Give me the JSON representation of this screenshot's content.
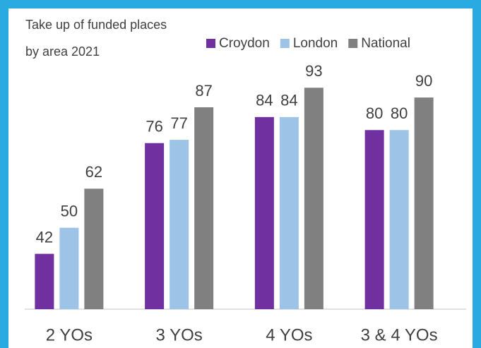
{
  "chart_data": {
    "type": "bar",
    "title": [
      "Take up of funded places",
      "by area 2021"
    ],
    "categories": [
      "2 YOs",
      "3 YOs",
      "4 YOs",
      "3 & 4 YOs"
    ],
    "series": [
      {
        "name": "Croydon",
        "color": "#7030a0",
        "values": [
          42,
          76,
          84,
          80
        ]
      },
      {
        "name": "London",
        "color": "#9dc3e6",
        "values": [
          50,
          77,
          84,
          80
        ]
      },
      {
        "name": "National",
        "color": "#808080",
        "values": [
          62,
          87,
          93,
          90
        ]
      }
    ],
    "ylim": [
      25,
      100
    ],
    "grid": false,
    "legend": "top-right"
  }
}
